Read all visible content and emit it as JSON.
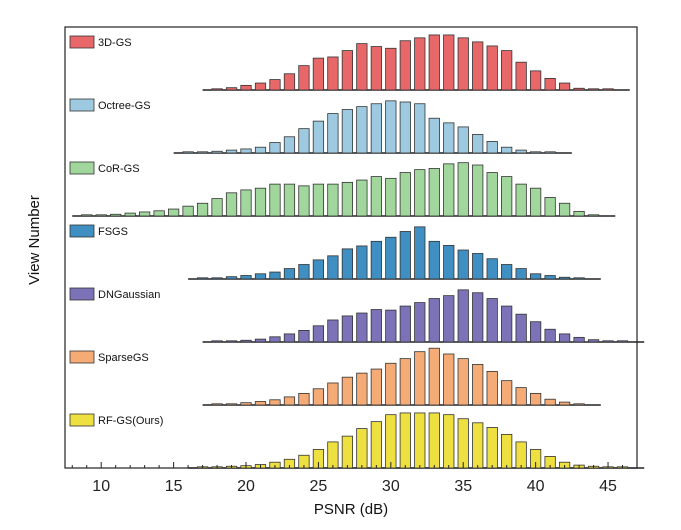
{
  "chart_data": {
    "type": "bar",
    "subtype": "stacked-ridgeline-histogram",
    "xlabel": "PSNR (dB)",
    "ylabel": "View Number",
    "xlim": [
      7.5,
      47
    ],
    "xticks": [
      10,
      15,
      20,
      25,
      30,
      35,
      40,
      45
    ],
    "bin_start": 8,
    "bin_width": 1,
    "grid": false,
    "legend_position": "top-left of each panel",
    "series": [
      {
        "name": "3D-GS",
        "color": "#e8686a",
        "values": [
          0,
          0,
          0,
          0,
          0,
          0,
          0,
          0,
          0,
          0,
          0.01,
          0.04,
          0.08,
          0.12,
          0.18,
          0.28,
          0.42,
          0.55,
          0.57,
          0.68,
          0.8,
          0.75,
          0.72,
          0.85,
          0.9,
          0.95,
          0.95,
          0.9,
          0.83,
          0.76,
          0.68,
          0.48,
          0.33,
          0.2,
          0.12,
          0.03,
          0.02,
          0.01,
          0,
          0
        ]
      },
      {
        "name": "Octree-GS",
        "color": "#9ecae1",
        "values": [
          0,
          0,
          0,
          0,
          0,
          0,
          0,
          0,
          0.01,
          0.02,
          0.03,
          0.05,
          0.07,
          0.1,
          0.18,
          0.28,
          0.42,
          0.55,
          0.68,
          0.75,
          0.8,
          0.85,
          0.9,
          0.88,
          0.85,
          0.6,
          0.52,
          0.45,
          0.32,
          0.2,
          0.1,
          0.05,
          0.02,
          0.01,
          0,
          0,
          0,
          0,
          0,
          0
        ]
      },
      {
        "name": "CoR-GS",
        "color": "#a1d79c",
        "values": [
          0,
          0.01,
          0.02,
          0.03,
          0.05,
          0.07,
          0.09,
          0.12,
          0.17,
          0.22,
          0.3,
          0.4,
          0.45,
          0.48,
          0.55,
          0.55,
          0.52,
          0.55,
          0.55,
          0.58,
          0.62,
          0.68,
          0.65,
          0.75,
          0.8,
          0.82,
          0.9,
          0.92,
          0.88,
          0.75,
          0.68,
          0.55,
          0.48,
          0.32,
          0.22,
          0.08,
          0.02,
          0,
          0,
          0
        ]
      },
      {
        "name": "FSGS",
        "color": "#3f8fc2",
        "values": [
          0,
          0,
          0,
          0,
          0,
          0,
          0,
          0,
          0,
          0.01,
          0.02,
          0.04,
          0.06,
          0.09,
          0.12,
          0.18,
          0.25,
          0.33,
          0.4,
          0.52,
          0.57,
          0.65,
          0.72,
          0.82,
          0.9,
          0.65,
          0.58,
          0.5,
          0.44,
          0.35,
          0.25,
          0.18,
          0.09,
          0.06,
          0.03,
          0.01,
          0,
          0,
          0,
          0
        ]
      },
      {
        "name": "DNGaussian",
        "color": "#7b72b8",
        "values": [
          0,
          0,
          0,
          0,
          0,
          0,
          0,
          0,
          0,
          0,
          0.01,
          0.02,
          0.03,
          0.05,
          0.09,
          0.14,
          0.2,
          0.28,
          0.38,
          0.45,
          0.5,
          0.56,
          0.55,
          0.62,
          0.68,
          0.75,
          0.8,
          0.9,
          0.85,
          0.75,
          0.62,
          0.48,
          0.35,
          0.22,
          0.14,
          0.08,
          0.04,
          0.02,
          0.01,
          0
        ]
      },
      {
        "name": "SparseGS",
        "color": "#f4ab76",
        "values": [
          0,
          0,
          0,
          0,
          0,
          0,
          0,
          0,
          0,
          0,
          0.01,
          0.02,
          0.04,
          0.06,
          0.09,
          0.14,
          0.2,
          0.28,
          0.38,
          0.48,
          0.55,
          0.62,
          0.72,
          0.8,
          0.92,
          0.98,
          0.88,
          0.8,
          0.7,
          0.58,
          0.42,
          0.3,
          0.2,
          0.1,
          0.05,
          0.02,
          0,
          0,
          0,
          0
        ]
      },
      {
        "name": "RF-GS(Ours)",
        "color": "#ede040",
        "values": [
          0,
          0,
          0,
          0,
          0,
          0,
          0,
          0,
          0,
          0.01,
          0.02,
          0.03,
          0.04,
          0.06,
          0.1,
          0.15,
          0.22,
          0.32,
          0.45,
          0.55,
          0.68,
          0.8,
          0.92,
          0.95,
          0.95,
          0.95,
          0.92,
          0.85,
          0.78,
          0.7,
          0.58,
          0.45,
          0.32,
          0.2,
          0.1,
          0.05,
          0.03,
          0.02,
          0.01,
          0
        ]
      }
    ]
  }
}
